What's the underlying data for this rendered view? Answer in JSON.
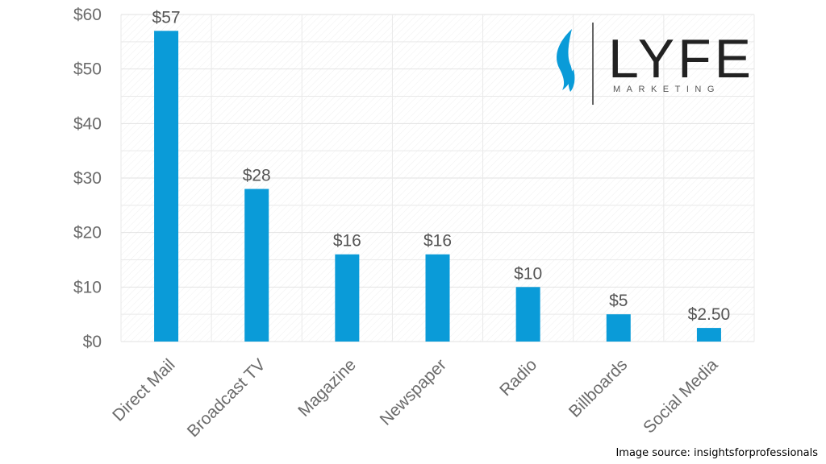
{
  "chart_data": {
    "type": "bar",
    "categories": [
      "Direct Mail",
      "Broadcast TV",
      "Magazine",
      "Newspaper",
      "Radio",
      "Billboards",
      "Social Media"
    ],
    "values": [
      57,
      28,
      16,
      16,
      10,
      5,
      2.5
    ],
    "data_labels": [
      "$57",
      "$28",
      "$16",
      "$16",
      "$10",
      "$5",
      "$2.50"
    ],
    "yticks": [
      0,
      10,
      20,
      30,
      40,
      50,
      60
    ],
    "ytick_labels": [
      "$0",
      "$10",
      "$20",
      "$30",
      "$40",
      "$50",
      "$60"
    ],
    "ylim": [
      0,
      60
    ],
    "title": "",
    "xlabel": "",
    "ylabel": "",
    "grid": true,
    "bar_color": "#0a9bd8"
  },
  "logo": {
    "wordmark": "LYFE",
    "subtitle": "MARKETING",
    "flame_color": "#0a9bd8"
  },
  "source": "Image source: insightsforprofessionals"
}
